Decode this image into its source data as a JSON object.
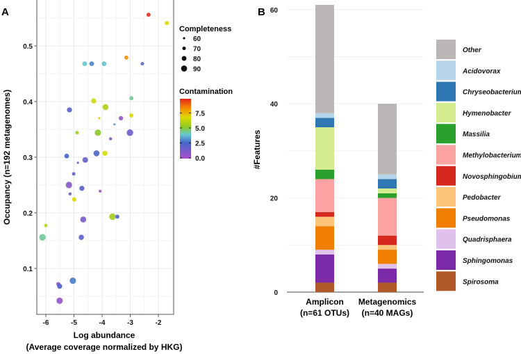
{
  "chart_data": [
    {
      "type": "scatter",
      "panel_label": "A",
      "xlabel": "Log abundance",
      "xlabel2": "(Average coverage normalized by HKG)",
      "ylabel": "Occupancy (n=192 metagenomes)",
      "xlim": [
        -6.35,
        -1.5
      ],
      "ylim": [
        0.02,
        0.58
      ],
      "xticks": [
        "-6",
        "-5",
        "-4",
        "-3",
        "-2"
      ],
      "yticks": [
        "0.1",
        "0.2",
        "0.3",
        "0.4",
        "0.5"
      ],
      "size_legend": {
        "title": "Completeness",
        "levels": [
          "60",
          "70",
          "80",
          "90"
        ]
      },
      "color_legend": {
        "title": "Contamination",
        "ticks": [
          "7.5",
          "5.0",
          "2.5",
          "0.0"
        ],
        "range": [
          0,
          9.5
        ]
      },
      "points": [
        {
          "x": -2.35,
          "y": 0.556,
          "c": 9.5,
          "comp": 70
        },
        {
          "x": -1.7,
          "y": 0.541,
          "c": 6.6,
          "comp": 70
        },
        {
          "x": -3.14,
          "y": 0.479,
          "c": 8.0,
          "comp": 70
        },
        {
          "x": -4.62,
          "y": 0.468,
          "c": 3.8,
          "comp": 75
        },
        {
          "x": -4.37,
          "y": 0.468,
          "c": 2.9,
          "comp": 75
        },
        {
          "x": -3.93,
          "y": 0.468,
          "c": 3.7,
          "comp": 75
        },
        {
          "x": -2.57,
          "y": 0.468,
          "c": 2.0,
          "comp": 65
        },
        {
          "x": -2.96,
          "y": 0.406,
          "c": 4.2,
          "comp": 70
        },
        {
          "x": -4.3,
          "y": 0.401,
          "c": 6.2,
          "comp": 78
        },
        {
          "x": -3.88,
          "y": 0.39,
          "c": 5.6,
          "comp": 85
        },
        {
          "x": -5.16,
          "y": 0.385,
          "c": 2.0,
          "comp": 78
        },
        {
          "x": -4.1,
          "y": 0.37,
          "c": 6.8,
          "comp": 55
        },
        {
          "x": -3.33,
          "y": 0.37,
          "c": 0.6,
          "comp": 72
        },
        {
          "x": -2.96,
          "y": 0.375,
          "c": 6.6,
          "comp": 70
        },
        {
          "x": -3.56,
          "y": 0.359,
          "c": 3.2,
          "comp": 55
        },
        {
          "x": -4.89,
          "y": 0.344,
          "c": 5.4,
          "comp": 65
        },
        {
          "x": -4.15,
          "y": 0.344,
          "c": 5.0,
          "comp": 88
        },
        {
          "x": -3.01,
          "y": 0.344,
          "c": 1.5,
          "comp": 90
        },
        {
          "x": -3.7,
          "y": 0.333,
          "c": 0.8,
          "comp": 62
        },
        {
          "x": -5.26,
          "y": 0.302,
          "c": 2.5,
          "comp": 75
        },
        {
          "x": -4.2,
          "y": 0.307,
          "c": 2.4,
          "comp": 85
        },
        {
          "x": -3.9,
          "y": 0.307,
          "c": 6.4,
          "comp": 78
        },
        {
          "x": -4.6,
          "y": 0.295,
          "c": 1.8,
          "comp": 82
        },
        {
          "x": -4.86,
          "y": 0.29,
          "c": 2.2,
          "comp": 55
        },
        {
          "x": -5.01,
          "y": 0.27,
          "c": 1.8,
          "comp": 65
        },
        {
          "x": -5.18,
          "y": 0.25,
          "c": 1.0,
          "comp": 88
        },
        {
          "x": -4.72,
          "y": 0.244,
          "c": 2.2,
          "comp": 78
        },
        {
          "x": -5.14,
          "y": 0.234,
          "c": 1.8,
          "comp": 62
        },
        {
          "x": -4.07,
          "y": 0.239,
          "c": 0.6,
          "comp": 60
        },
        {
          "x": -4.99,
          "y": 0.224,
          "c": 6.6,
          "comp": 72
        },
        {
          "x": -3.63,
          "y": 0.193,
          "c": 5.4,
          "comp": 90
        },
        {
          "x": -3.46,
          "y": 0.193,
          "c": 2.2,
          "comp": 70
        },
        {
          "x": -4.67,
          "y": 0.188,
          "c": 1.3,
          "comp": 85
        },
        {
          "x": -6.0,
          "y": 0.177,
          "c": 5.8,
          "comp": 65
        },
        {
          "x": -6.12,
          "y": 0.156,
          "c": 4.2,
          "comp": 90
        },
        {
          "x": -4.74,
          "y": 0.156,
          "c": 2.0,
          "comp": 80
        },
        {
          "x": -5.04,
          "y": 0.078,
          "c": 2.8,
          "comp": 88
        },
        {
          "x": -5.56,
          "y": 0.072,
          "c": 0.8,
          "comp": 70
        },
        {
          "x": -5.51,
          "y": 0.068,
          "c": 2.2,
          "comp": 78
        },
        {
          "x": -5.51,
          "y": 0.042,
          "c": 0.6,
          "comp": 88
        }
      ]
    },
    {
      "type": "bar",
      "stacked": true,
      "panel_label": "B",
      "ylabel": "#Features",
      "ylim": [
        0,
        61
      ],
      "yticks": [
        "0",
        "20",
        "40",
        "60"
      ],
      "categories": [
        {
          "line1": "Amplicon",
          "line2": "(n=61 OTUs)"
        },
        {
          "line1": "Metagenomics",
          "line2": "(n=40 MAGs)"
        }
      ],
      "series": [
        {
          "name": "Spirosoma",
          "color": "#b15928",
          "values": [
            2,
            2
          ]
        },
        {
          "name": "Sphingomonas",
          "color": "#7b2aa8",
          "values": [
            6,
            3
          ]
        },
        {
          "name": "Quadrisphaera",
          "color": "#dfc1eb",
          "values": [
            1,
            1
          ]
        },
        {
          "name": "Pseudomonas",
          "color": "#f07e00",
          "values": [
            5,
            3
          ]
        },
        {
          "name": "Pedobacter",
          "color": "#fdc57b",
          "values": [
            2,
            1
          ]
        },
        {
          "name": "Novosphingobium",
          "color": "#d7281e",
          "values": [
            1,
            2
          ]
        },
        {
          "name": "Methylobacterium",
          "color": "#fba3a3",
          "values": [
            7,
            8
          ]
        },
        {
          "name": "Massilia",
          "color": "#2ca02c",
          "values": [
            2,
            1
          ]
        },
        {
          "name": "Hymenobacter",
          "color": "#d5ec8e",
          "values": [
            9,
            1
          ]
        },
        {
          "name": "Chryseobacterium",
          "color": "#2f78b4",
          "values": [
            2,
            2
          ]
        },
        {
          "name": "Acidovorax",
          "color": "#b6d5e8",
          "values": [
            1,
            1
          ]
        },
        {
          "name": "Other",
          "color": "#bab6b6",
          "values": [
            23,
            15
          ]
        }
      ]
    }
  ]
}
